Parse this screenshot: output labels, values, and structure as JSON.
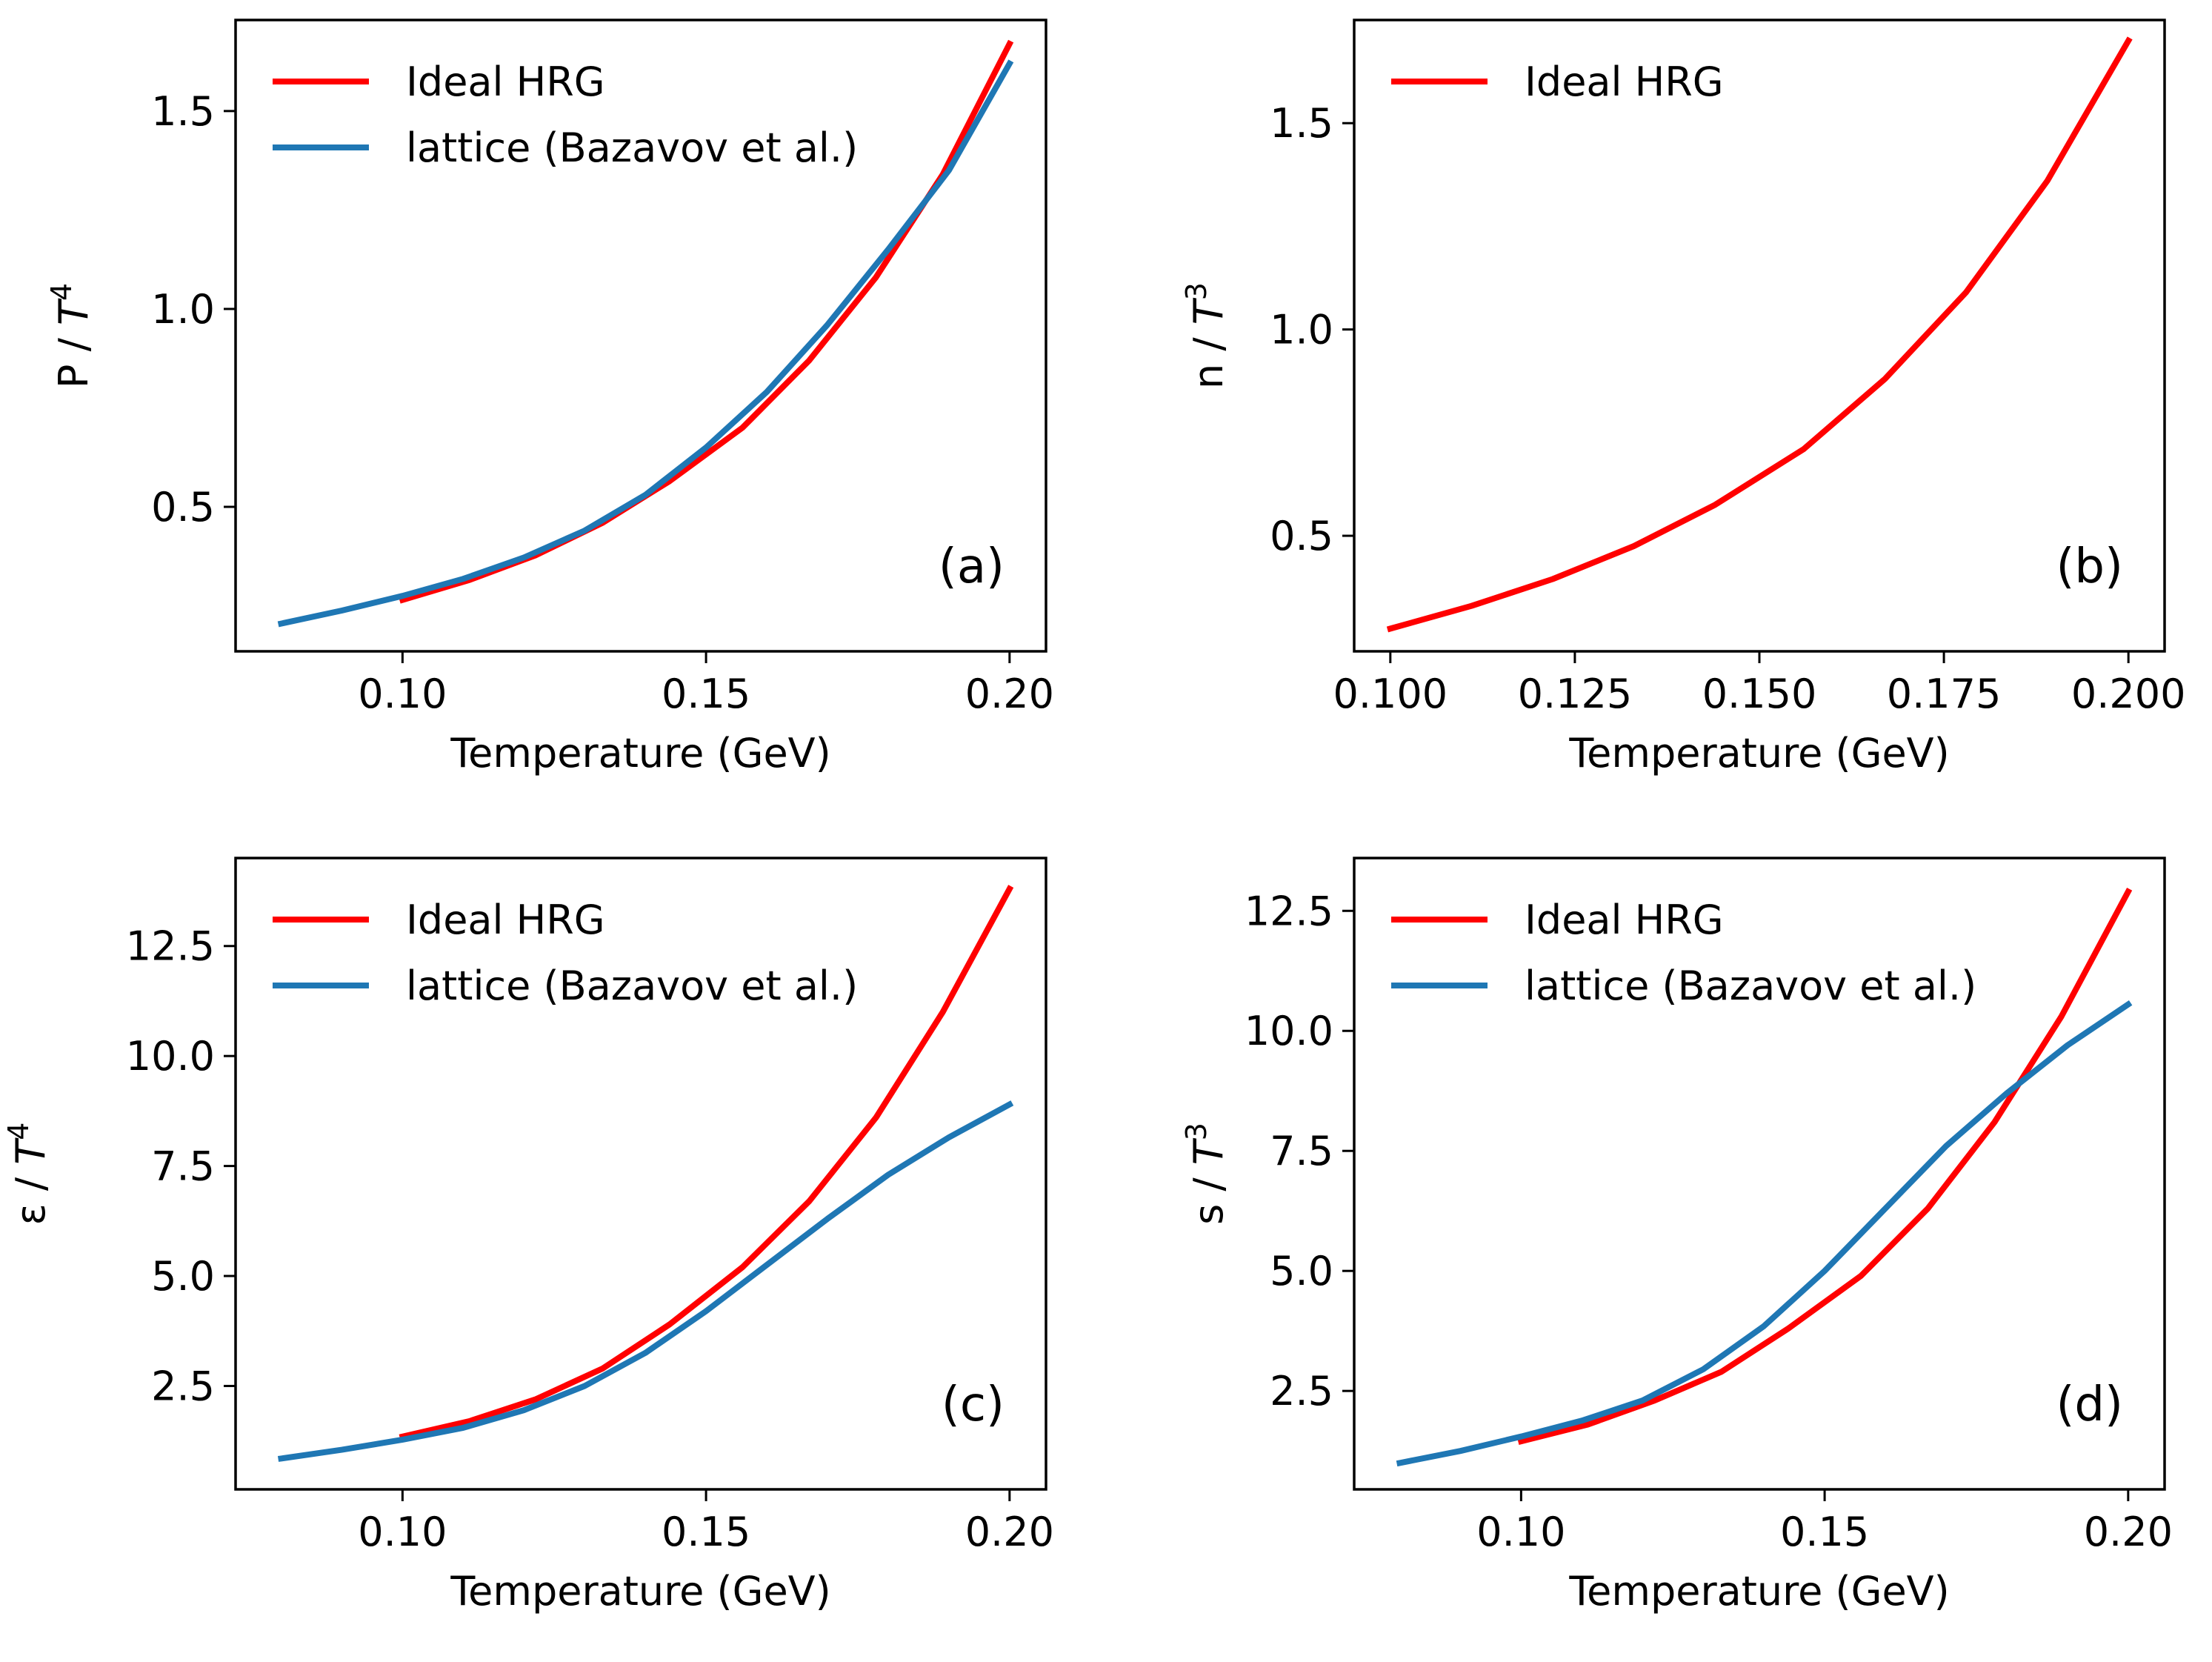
{
  "colors": {
    "hrg": "#ff0000",
    "lattice": "#1f77b4",
    "axis": "#000000",
    "background": "#ffffff"
  },
  "chart_data": [
    {
      "type": "line",
      "panel_label": "(a)",
      "xlabel": "Temperature (GeV)",
      "ylabel": {
        "prefix": "P / ",
        "base": "T",
        "sup": "4"
      },
      "xlim": [
        0.0725,
        0.206
      ],
      "ylim": [
        0.135,
        1.73
      ],
      "xticks": [
        0.1,
        0.15,
        0.2
      ],
      "xtick_labels": [
        "0.10",
        "0.15",
        "0.20"
      ],
      "yticks": [
        0.5,
        1.0,
        1.5
      ],
      "ytick_labels": [
        "0.5",
        "1.0",
        "1.5"
      ],
      "legend": {
        "position": "top-left",
        "entries": [
          "Ideal HRG",
          "lattice (Bazavov et al.)"
        ]
      },
      "series": [
        {
          "name": "Ideal HRG",
          "color": "#ff0000",
          "x": [
            0.1,
            0.111,
            0.122,
            0.133,
            0.144,
            0.156,
            0.167,
            0.178,
            0.189,
            0.2
          ],
          "y": [
            0.265,
            0.315,
            0.378,
            0.46,
            0.565,
            0.7,
            0.87,
            1.08,
            1.34,
            1.67
          ]
        },
        {
          "name": "lattice (Bazavov et al.)",
          "color": "#1f77b4",
          "x": [
            0.08,
            0.09,
            0.1,
            0.11,
            0.12,
            0.13,
            0.14,
            0.15,
            0.16,
            0.17,
            0.18,
            0.19,
            0.2
          ],
          "y": [
            0.205,
            0.238,
            0.275,
            0.318,
            0.372,
            0.44,
            0.53,
            0.65,
            0.79,
            0.96,
            1.15,
            1.35,
            1.62
          ]
        }
      ]
    },
    {
      "type": "line",
      "panel_label": "(b)",
      "xlabel": "Temperature (GeV)",
      "ylabel": {
        "prefix": "n / ",
        "base": "T",
        "sup": "3"
      },
      "xlim": [
        0.0951,
        0.2049
      ],
      "ylim": [
        0.22,
        1.75
      ],
      "xticks": [
        0.1,
        0.125,
        0.15,
        0.175,
        0.2
      ],
      "xtick_labels": [
        "0.100",
        "0.125",
        "0.150",
        "0.175",
        "0.200"
      ],
      "yticks": [
        0.5,
        1.0,
        1.5
      ],
      "ytick_labels": [
        "0.5",
        "1.0",
        "1.5"
      ],
      "legend": {
        "position": "top-left",
        "entries": [
          "Ideal HRG"
        ]
      },
      "series": [
        {
          "name": "Ideal HRG",
          "color": "#ff0000",
          "x": [
            0.1,
            0.111,
            0.122,
            0.133,
            0.144,
            0.156,
            0.167,
            0.178,
            0.189,
            0.2
          ],
          "y": [
            0.275,
            0.33,
            0.395,
            0.475,
            0.575,
            0.71,
            0.88,
            1.09,
            1.36,
            1.7
          ]
        }
      ]
    },
    {
      "type": "line",
      "panel_label": "(c)",
      "xlabel": "Temperature (GeV)",
      "ylabel": {
        "prefix": "ε / ",
        "base": "T",
        "sup": "4"
      },
      "xlim": [
        0.0725,
        0.206
      ],
      "ylim": [
        0.15,
        14.5
      ],
      "xticks": [
        0.1,
        0.15,
        0.2
      ],
      "xtick_labels": [
        "0.10",
        "0.15",
        "0.20"
      ],
      "yticks": [
        2.5,
        5.0,
        7.5,
        10.0,
        12.5
      ],
      "ytick_labels": [
        "2.5",
        "5.0",
        "7.5",
        "10.0",
        "12.5"
      ],
      "legend": {
        "position": "top-left",
        "entries": [
          "Ideal HRG",
          "lattice (Bazavov et al.)"
        ]
      },
      "series": [
        {
          "name": "Ideal HRG",
          "color": "#ff0000",
          "x": [
            0.1,
            0.111,
            0.122,
            0.133,
            0.144,
            0.156,
            0.167,
            0.178,
            0.189,
            0.2
          ],
          "y": [
            1.35,
            1.7,
            2.2,
            2.9,
            3.9,
            5.2,
            6.7,
            8.6,
            11.0,
            13.8
          ]
        },
        {
          "name": "lattice (Bazavov et al.)",
          "color": "#1f77b4",
          "x": [
            0.08,
            0.09,
            0.1,
            0.11,
            0.12,
            0.13,
            0.14,
            0.15,
            0.16,
            0.17,
            0.18,
            0.19,
            0.2
          ],
          "y": [
            0.85,
            1.05,
            1.28,
            1.55,
            1.95,
            2.5,
            3.25,
            4.2,
            5.25,
            6.3,
            7.3,
            8.15,
            8.9
          ]
        }
      ]
    },
    {
      "type": "line",
      "panel_label": "(d)",
      "xlabel": "Temperature (GeV)",
      "ylabel": {
        "prefix": "s / ",
        "base": "T",
        "sup": "3"
      },
      "xlim": [
        0.0725,
        0.206
      ],
      "ylim": [
        0.45,
        13.6
      ],
      "xticks": [
        0.1,
        0.15,
        0.2
      ],
      "xtick_labels": [
        "0.10",
        "0.15",
        "0.20"
      ],
      "yticks": [
        2.5,
        5.0,
        7.5,
        10.0,
        12.5
      ],
      "ytick_labels": [
        "2.5",
        "5.0",
        "7.5",
        "10.0",
        "12.5"
      ],
      "legend": {
        "position": "top-left",
        "entries": [
          "Ideal HRG",
          "lattice (Bazavov et al.)"
        ]
      },
      "series": [
        {
          "name": "Ideal HRG",
          "color": "#ff0000",
          "x": [
            0.1,
            0.111,
            0.122,
            0.133,
            0.144,
            0.156,
            0.167,
            0.178,
            0.189,
            0.2
          ],
          "y": [
            1.45,
            1.8,
            2.3,
            2.9,
            3.8,
            4.9,
            6.3,
            8.1,
            10.3,
            12.9
          ]
        },
        {
          "name": "lattice (Bazavov et al.)",
          "color": "#1f77b4",
          "x": [
            0.08,
            0.09,
            0.1,
            0.11,
            0.12,
            0.13,
            0.14,
            0.15,
            0.16,
            0.17,
            0.18,
            0.19,
            0.2
          ],
          "y": [
            1.0,
            1.25,
            1.55,
            1.88,
            2.3,
            2.95,
            3.85,
            5.0,
            6.3,
            7.6,
            8.7,
            9.7,
            10.55
          ]
        }
      ]
    }
  ]
}
